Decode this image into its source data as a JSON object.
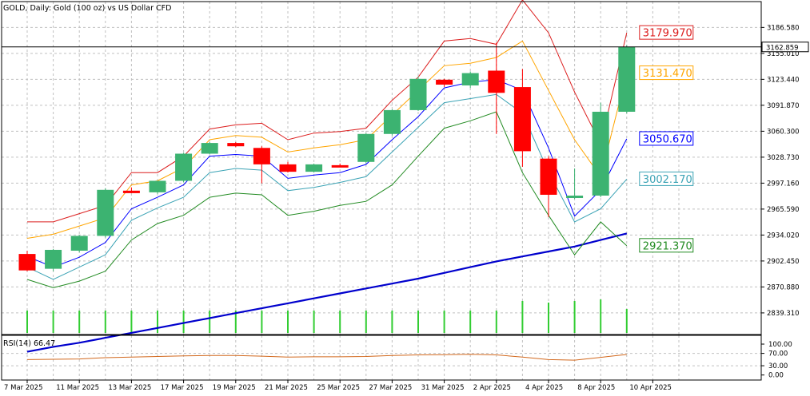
{
  "chart_title": "GOLD, Daily:  Gold (100 oz) vs US Dollar CFD",
  "rsi_label": "RSI(14) 66.47",
  "current_price_label": "3162.859",
  "colors": {
    "bull": "#3cb371",
    "bear": "#ff0000",
    "ma": "#0000cd",
    "band_top": "#dc1e1e",
    "band_upper": "#ffa500",
    "band_mid": "#0000ff",
    "band_lower": "#3ba3b5",
    "band_bottom": "#228b22",
    "rsi_line": "#d2691e",
    "volume": "#32cd32",
    "grid": "#c0c0c0"
  },
  "chart_data": {
    "type": "candlestick",
    "price_axis": {
      "ylim": [
        2813,
        3218
      ],
      "ticks": [
        "3186.580",
        "3155.010",
        "3123.440",
        "3091.870",
        "3060.300",
        "3028.730",
        "2997.160",
        "2965.590",
        "2934.020",
        "2902.450",
        "2870.880",
        "2839.310"
      ]
    },
    "rsi_axis": {
      "ticks": [
        "100.00",
        "70.00",
        "30.00",
        "0.00"
      ]
    },
    "x_labels": [
      "7 Mar 2025",
      "11 Mar 2025",
      "13 Mar 2025",
      "17 Mar 2025",
      "19 Mar 2025",
      "21 Mar 2025",
      "25 Mar 2025",
      "27 Mar 2025",
      "31 Mar 2025",
      "2 Apr 2025",
      "4 Apr 2025",
      "8 Apr 2025",
      "10 Apr 2025"
    ],
    "candles": [
      {
        "o": 2911,
        "h": 2915,
        "l": 2890,
        "c": 2891
      },
      {
        "o": 2893,
        "h": 2917,
        "l": 2890,
        "c": 2916
      },
      {
        "o": 2915,
        "h": 2934,
        "l": 2913,
        "c": 2933
      },
      {
        "o": 2933,
        "h": 2991,
        "l": 2931,
        "c": 2989
      },
      {
        "o": 2988,
        "h": 2992,
        "l": 2985,
        "c": 2985
      },
      {
        "o": 2986,
        "h": 3000,
        "l": 2984,
        "c": 3000
      },
      {
        "o": 3000,
        "h": 3034,
        "l": 2998,
        "c": 3033
      },
      {
        "o": 3033,
        "h": 3047,
        "l": 3032,
        "c": 3046
      },
      {
        "o": 3046,
        "h": 3047,
        "l": 3041,
        "c": 3042
      },
      {
        "o": 3040,
        "h": 3042,
        "l": 2997,
        "c": 3020
      },
      {
        "o": 3020,
        "h": 3023,
        "l": 3010,
        "c": 3011
      },
      {
        "o": 3011,
        "h": 3021,
        "l": 3010,
        "c": 3020
      },
      {
        "o": 3019,
        "h": 3021,
        "l": 3017,
        "c": 3018
      },
      {
        "o": 3023,
        "h": 3058,
        "l": 3021,
        "c": 3057
      },
      {
        "o": 3057,
        "h": 3087,
        "l": 3055,
        "c": 3086
      },
      {
        "o": 3086,
        "h": 3127,
        "l": 3085,
        "c": 3124
      },
      {
        "o": 3123,
        "h": 3124,
        "l": 3114,
        "c": 3117
      },
      {
        "o": 3116,
        "h": 3133,
        "l": 3113,
        "c": 3131
      },
      {
        "o": 3134,
        "h": 3168,
        "l": 3057,
        "c": 3107
      },
      {
        "o": 3114,
        "h": 3136,
        "l": 3017,
        "c": 3036
      },
      {
        "o": 3027,
        "h": 3030,
        "l": 2956,
        "c": 2983
      },
      {
        "o": 2980,
        "h": 3015,
        "l": 2978,
        "c": 2982
      },
      {
        "o": 2982,
        "h": 3095,
        "l": 2980,
        "c": 3084
      },
      {
        "o": 3084,
        "h": 3165,
        "l": 3082,
        "c": 3163
      }
    ],
    "series": [
      {
        "key": "ma",
        "values": [
          2792,
          2798,
          2803,
          2809,
          2815,
          2821,
          2827,
          2833,
          2839,
          2845,
          2851,
          2857,
          2863,
          2869,
          2875,
          2881,
          2888,
          2895,
          2902,
          2908,
          2914,
          2920,
          2928,
          2936
        ]
      },
      {
        "key": "band_top",
        "values": [
          2950,
          2950,
          2960,
          2970,
          3010,
          3010,
          3030,
          3063,
          3068,
          3070,
          3050,
          3058,
          3060,
          3064,
          3098,
          3126,
          3170,
          3173,
          3166,
          3220,
          3180,
          3108,
          3045,
          3180
        ]
      },
      {
        "key": "band_upper",
        "values": [
          2930,
          2935,
          2945,
          2955,
          2995,
          3000,
          3016,
          3050,
          3055,
          3053,
          3035,
          3040,
          3044,
          3050,
          3080,
          3110,
          3140,
          3143,
          3150,
          3170,
          3110,
          3050,
          3005,
          3131
        ]
      },
      {
        "key": "band_mid",
        "values": [
          2908,
          2895,
          2907,
          2925,
          2966,
          2980,
          2995,
          3030,
          3032,
          3030,
          3003,
          3007,
          3010,
          3020,
          3050,
          3078,
          3113,
          3120,
          3123,
          3110,
          3040,
          2957,
          2989,
          3051
        ]
      },
      {
        "key": "band_lower",
        "values": [
          2895,
          2880,
          2895,
          2910,
          2952,
          2967,
          2980,
          3010,
          3015,
          3013,
          2988,
          2992,
          2998,
          3005,
          3035,
          3065,
          3095,
          3100,
          3105,
          3082,
          3011,
          2950,
          2966,
          3002
        ]
      },
      {
        "key": "band_bottom",
        "values": [
          2880,
          2870,
          2878,
          2890,
          2928,
          2948,
          2958,
          2980,
          2985,
          2983,
          2958,
          2963,
          2970,
          2975,
          2995,
          3030,
          3064,
          3073,
          3084,
          3010,
          2958,
          2910,
          2950,
          2921
        ]
      }
    ],
    "rsi": {
      "values": [
        50,
        51,
        52,
        56,
        58,
        60,
        62,
        63,
        63,
        61,
        58,
        59,
        59,
        60,
        63,
        65,
        66,
        67,
        65,
        58,
        50,
        48,
        57,
        66.47
      ]
    },
    "right_labels": [
      {
        "key": "band_top",
        "value": "3179.970"
      },
      {
        "key": "band_upper",
        "value": "3131.470"
      },
      {
        "key": "band_mid",
        "value": "3050.670"
      },
      {
        "key": "band_lower",
        "value": "3002.170"
      },
      {
        "key": "band_bottom",
        "value": "2921.370"
      }
    ]
  }
}
